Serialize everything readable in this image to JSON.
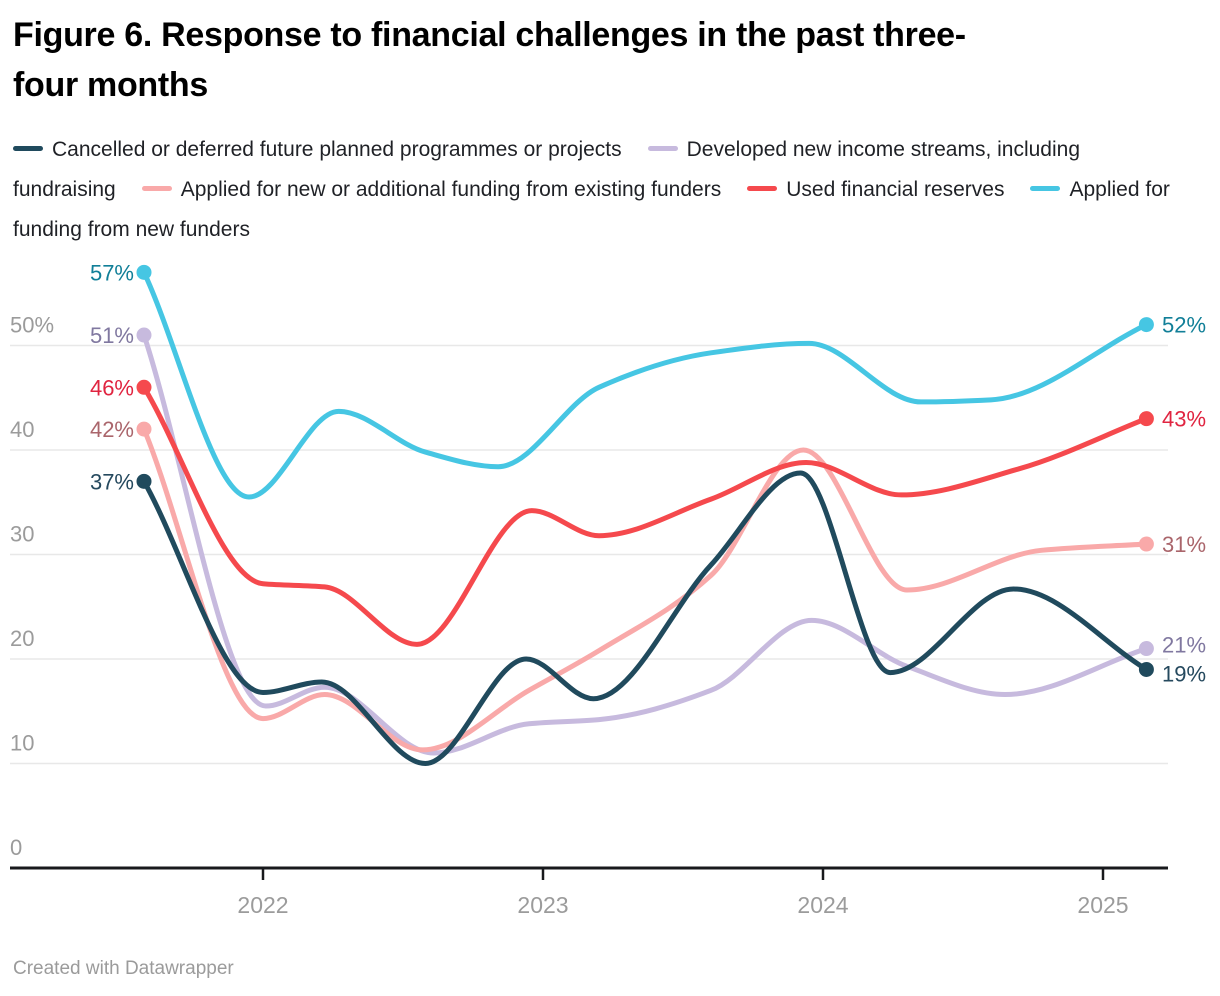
{
  "title": {
    "full": "Figure 6. Response to financial challenges in the past three-four months",
    "lines": [
      "Figure 6. Response to financial challenges in the past three-",
      "four months"
    ]
  },
  "footer": {
    "text": "Created with Datawrapper"
  },
  "colors": {
    "title_text": "#000000",
    "legend_text": "#1f2126",
    "axis_text": "#9b9b9b",
    "grid_line": "#e8e8e8",
    "baseline": "#18191c"
  },
  "chart_data": {
    "type": "line",
    "title": "Figure 6. Response to financial challenges in the past three-four months",
    "xlabel": "",
    "ylabel": "",
    "grid": "horizontal",
    "legend_position": "top",
    "xlim": [
      2021.45,
      2025.4
    ],
    "ylim": [
      0,
      58
    ],
    "x_ticks": [
      {
        "v": 2022,
        "label": "2022"
      },
      {
        "v": 2023,
        "label": "2023"
      },
      {
        "v": 2024,
        "label": "2024"
      },
      {
        "v": 2025,
        "label": "2025"
      }
    ],
    "y_ticks": [
      {
        "v": 0,
        "label": "0"
      },
      {
        "v": 10,
        "label": "10"
      },
      {
        "v": 20,
        "label": "20"
      },
      {
        "v": 30,
        "label": "30"
      },
      {
        "v": 40,
        "label": "40"
      },
      {
        "v": 50,
        "label": "50%"
      }
    ],
    "series": [
      {
        "key": "cancelled",
        "label": "Cancelled or deferred future planned programmes or projects",
        "color": "#204a5d",
        "label_color": "#25495e",
        "z": 5,
        "start_label": "37%",
        "end_label": "19%",
        "end_label_dy": 4,
        "points": [
          {
            "x": 2021.575,
            "y": 37
          },
          {
            "x": 2022.0,
            "y": 16.8
          },
          {
            "x": 2022.21,
            "y": 17.8
          },
          {
            "x": 2022.58,
            "y": 10
          },
          {
            "x": 2022.94,
            "y": 20
          },
          {
            "x": 2023.18,
            "y": 16.2
          },
          {
            "x": 2023.6,
            "y": 29
          },
          {
            "x": 2023.92,
            "y": 37.8
          },
          {
            "x": 2024.24,
            "y": 18.7
          },
          {
            "x": 2024.68,
            "y": 26.7
          },
          {
            "x": 2025.155,
            "y": 19
          }
        ]
      },
      {
        "key": "developed",
        "label": "Developed new income streams, including fundraising",
        "color": "#c7bade",
        "label_color": "#8078a0",
        "z": 1,
        "start_label": "51%",
        "end_label": "21%",
        "end_label_dy": -4,
        "points": [
          {
            "x": 2021.575,
            "y": 51
          },
          {
            "x": 2022.01,
            "y": 15.5
          },
          {
            "x": 2022.22,
            "y": 17.3
          },
          {
            "x": 2022.61,
            "y": 11
          },
          {
            "x": 2022.95,
            "y": 13.8
          },
          {
            "x": 2023.2,
            "y": 14.2
          },
          {
            "x": 2023.6,
            "y": 17
          },
          {
            "x": 2023.96,
            "y": 23.7
          },
          {
            "x": 2024.3,
            "y": 19.3
          },
          {
            "x": 2024.65,
            "y": 16.6
          },
          {
            "x": 2025.155,
            "y": 21
          }
        ]
      },
      {
        "key": "applied-existing",
        "label": "Applied for new or additional funding from existing funders",
        "color": "#f9a9a9",
        "label_color": "#aa656b",
        "z": 2,
        "start_label": "42%",
        "end_label": "31%",
        "end_label_dy": 0,
        "points": [
          {
            "x": 2021.575,
            "y": 42
          },
          {
            "x": 2022.0,
            "y": 14.3
          },
          {
            "x": 2022.22,
            "y": 16.6
          },
          {
            "x": 2022.57,
            "y": 11.3
          },
          {
            "x": 2022.95,
            "y": 17
          },
          {
            "x": 2023.2,
            "y": 20.8
          },
          {
            "x": 2023.6,
            "y": 28
          },
          {
            "x": 2023.93,
            "y": 40
          },
          {
            "x": 2024.3,
            "y": 26.6
          },
          {
            "x": 2024.78,
            "y": 30.4
          },
          {
            "x": 2025.155,
            "y": 31
          }
        ]
      },
      {
        "key": "reserves",
        "label": "Used financial reserves",
        "color": "#f5494d",
        "label_color": "#e02440",
        "z": 3,
        "start_label": "46%",
        "end_label": "43%",
        "end_label_dy": 0,
        "points": [
          {
            "x": 2021.575,
            "y": 46
          },
          {
            "x": 2022.0,
            "y": 27.2
          },
          {
            "x": 2022.22,
            "y": 26.9
          },
          {
            "x": 2022.55,
            "y": 21.4
          },
          {
            "x": 2022.96,
            "y": 34.2
          },
          {
            "x": 2023.2,
            "y": 31.8
          },
          {
            "x": 2023.6,
            "y": 35.3
          },
          {
            "x": 2023.94,
            "y": 38.8
          },
          {
            "x": 2024.28,
            "y": 35.7
          },
          {
            "x": 2024.7,
            "y": 38.2
          },
          {
            "x": 2025.155,
            "y": 43
          }
        ]
      },
      {
        "key": "new-funders",
        "label": "Applied for funding from new funders",
        "color": "#46c6e3",
        "label_color": "#117f98",
        "z": 4,
        "start_label": "57%",
        "end_label": "52%",
        "end_label_dy": 0,
        "points": [
          {
            "x": 2021.575,
            "y": 57
          },
          {
            "x": 2021.95,
            "y": 35.5
          },
          {
            "x": 2022.27,
            "y": 43.7
          },
          {
            "x": 2022.58,
            "y": 39.8
          },
          {
            "x": 2022.84,
            "y": 38.4
          },
          {
            "x": 2023.2,
            "y": 46
          },
          {
            "x": 2023.6,
            "y": 49.3
          },
          {
            "x": 2023.95,
            "y": 50.2
          },
          {
            "x": 2024.35,
            "y": 44.6
          },
          {
            "x": 2024.6,
            "y": 44.8
          },
          {
            "x": 2025.155,
            "y": 52
          }
        ]
      }
    ]
  }
}
